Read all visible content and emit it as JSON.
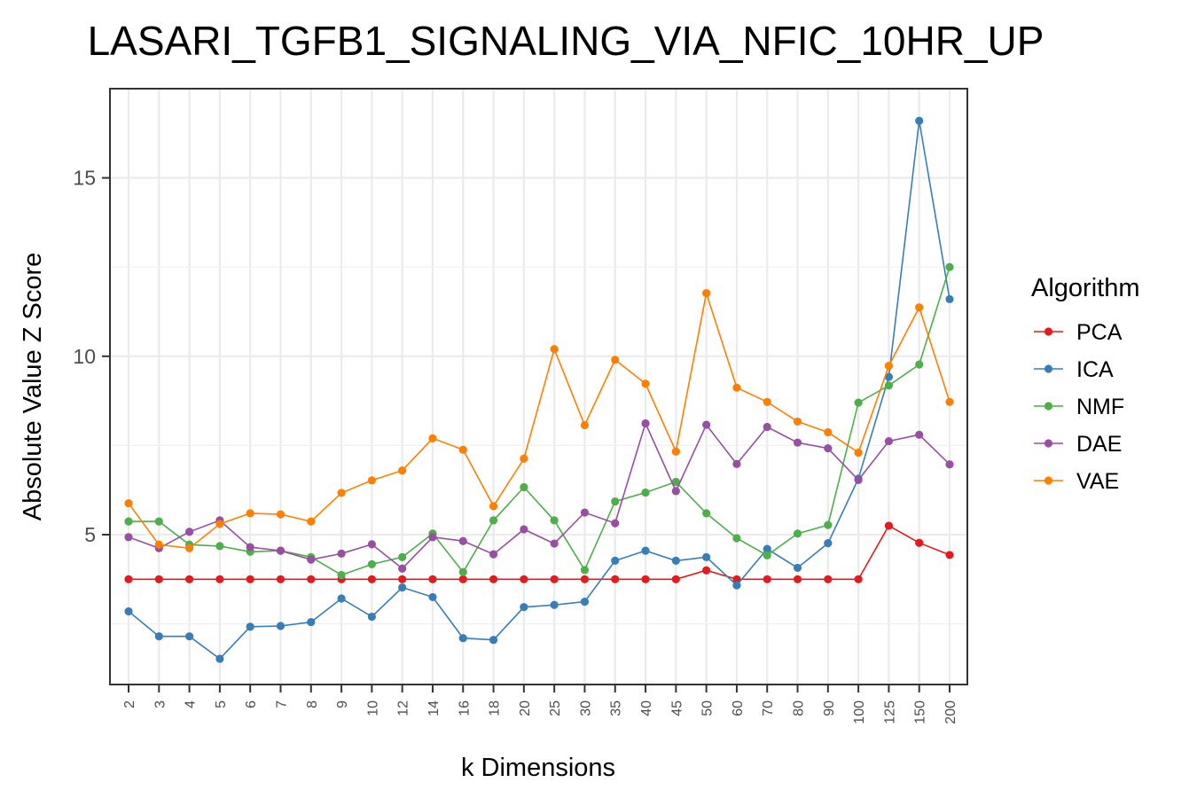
{
  "chart_data": {
    "type": "line",
    "title": "LASARI_TGFB1_SIGNALING_VIA_NFIC_10HR_UP",
    "xlabel": "k Dimensions",
    "ylabel": "Absolute Value Z Score",
    "categories": [
      "2",
      "3",
      "4",
      "5",
      "6",
      "7",
      "8",
      "9",
      "10",
      "12",
      "14",
      "16",
      "18",
      "20",
      "25",
      "30",
      "35",
      "40",
      "45",
      "50",
      "60",
      "70",
      "80",
      "90",
      "100",
      "125",
      "150",
      "200"
    ],
    "ylim": [
      0.8,
      17.5
    ],
    "yticks": [
      5,
      10,
      15
    ],
    "grid": true,
    "legend": {
      "title": "Algorithm",
      "position": "right"
    },
    "series": [
      {
        "name": "PCA",
        "color": "#E41A1C",
        "values": [
          3.75,
          3.75,
          3.75,
          3.75,
          3.75,
          3.75,
          3.75,
          3.75,
          3.75,
          3.75,
          3.75,
          3.75,
          3.75,
          3.75,
          3.75,
          3.75,
          3.75,
          3.75,
          3.75,
          4.0,
          3.75,
          3.75,
          3.75,
          3.75,
          3.75,
          5.25,
          4.77,
          4.43
        ]
      },
      {
        "name": "ICA",
        "color": "#377EB8",
        "values": [
          2.85,
          2.15,
          2.15,
          1.52,
          2.42,
          2.44,
          2.55,
          3.21,
          2.7,
          3.52,
          3.25,
          2.1,
          2.05,
          2.97,
          3.03,
          3.12,
          4.27,
          4.55,
          4.27,
          4.37,
          3.58,
          4.6,
          4.07,
          4.76,
          6.57,
          9.42,
          16.6,
          11.6
        ]
      },
      {
        "name": "NMF",
        "color": "#4DAF4A",
        "values": [
          5.37,
          5.37,
          4.72,
          4.68,
          4.52,
          4.55,
          4.37,
          3.87,
          4.17,
          4.37,
          5.03,
          3.95,
          5.4,
          6.33,
          5.4,
          4.01,
          5.93,
          6.18,
          6.48,
          5.6,
          4.9,
          4.42,
          5.03,
          5.27,
          8.7,
          9.18,
          9.77,
          12.5
        ]
      },
      {
        "name": "DAE",
        "color": "#984EA3",
        "values": [
          4.93,
          4.62,
          5.08,
          5.4,
          4.65,
          4.55,
          4.3,
          4.47,
          4.73,
          4.05,
          4.93,
          4.82,
          4.45,
          5.15,
          4.75,
          5.62,
          5.32,
          8.12,
          6.22,
          8.08,
          6.98,
          8.02,
          7.58,
          7.42,
          6.53,
          7.62,
          7.8,
          6.97
        ]
      },
      {
        "name": "VAE",
        "color": "#FF7F00",
        "values": [
          5.88,
          4.72,
          4.62,
          5.3,
          5.6,
          5.57,
          5.37,
          6.17,
          6.52,
          6.8,
          7.7,
          7.38,
          5.8,
          7.13,
          10.2,
          8.07,
          9.9,
          9.23,
          7.33,
          11.77,
          9.12,
          8.72,
          8.17,
          7.87,
          7.3,
          9.73,
          11.37,
          8.72
        ]
      }
    ]
  }
}
